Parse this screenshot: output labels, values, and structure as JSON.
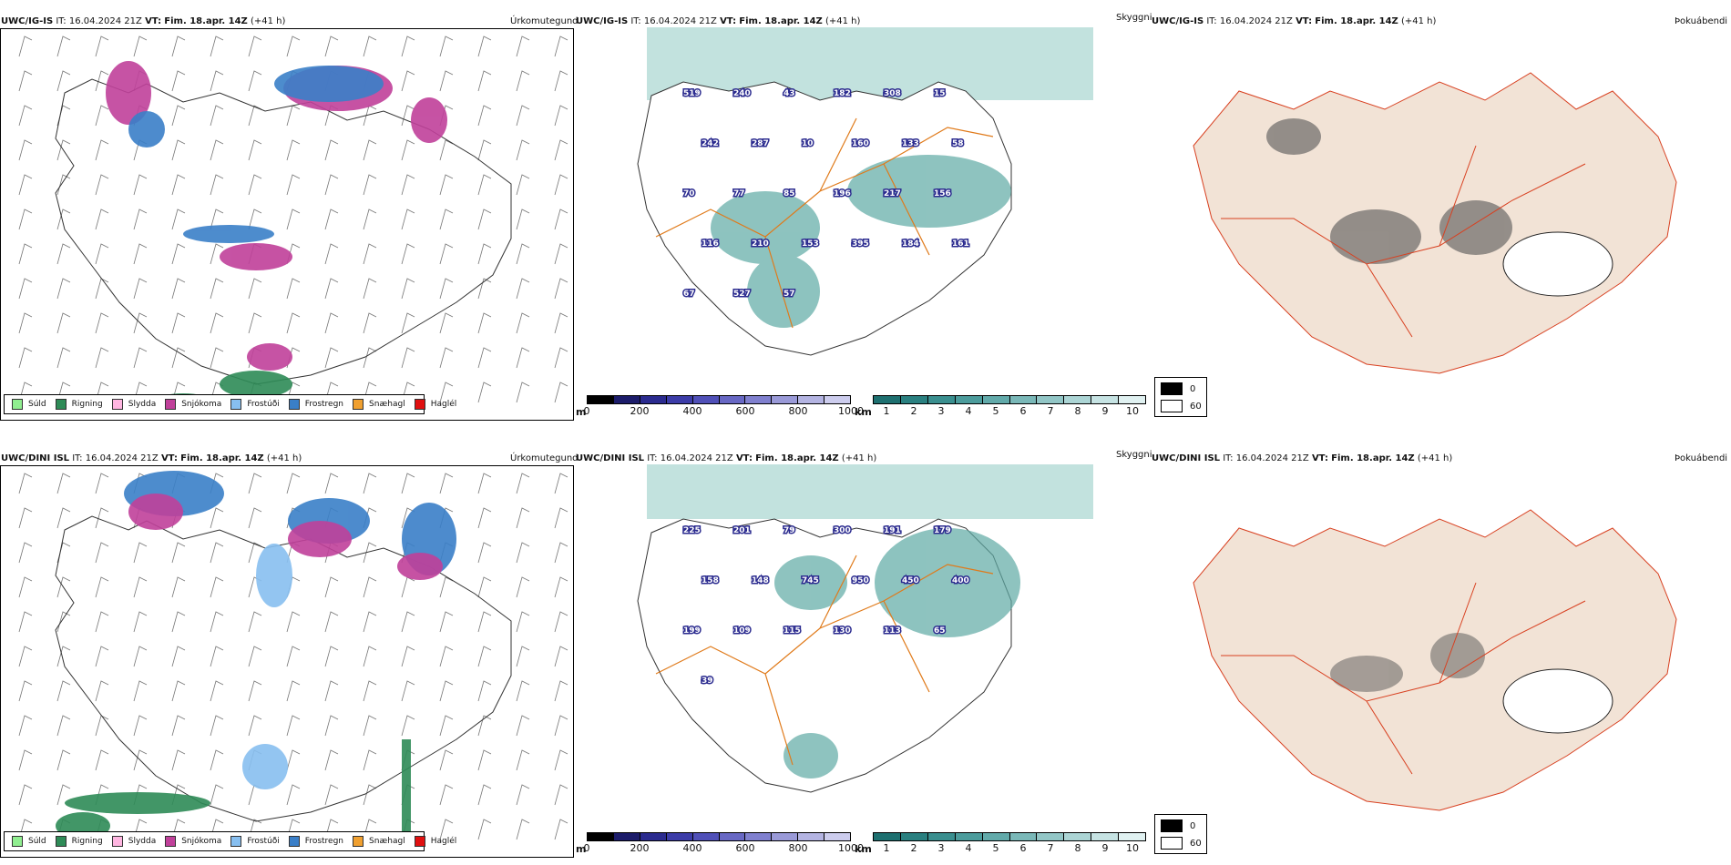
{
  "rows": [
    {
      "model": "UWC/IG-IS",
      "it_label": "IT:",
      "it_value": "16.04.2024 21Z",
      "vt_label": "VT:",
      "vt_value": "Fim. 18.apr. 14Z",
      "lead": "(+41 h)",
      "precip_title": "Úrkomutegund",
      "visibility_title": "Skyggni",
      "fog_title": "Þokuábendi",
      "labels": [
        "519",
        "240",
        "43",
        "182",
        "308",
        "15",
        "242",
        "287",
        "10",
        "160",
        "133",
        "58",
        "70",
        "77",
        "85",
        "196",
        "217",
        "156",
        "116",
        "210",
        "153",
        "395",
        "184",
        "161",
        "67",
        "527",
        "57"
      ]
    },
    {
      "model": "UWC/DINI ISL",
      "it_label": "IT:",
      "it_value": "16.04.2024 21Z",
      "vt_label": "VT:",
      "vt_value": "Fim. 18.apr. 14Z",
      "lead": "(+41 h)",
      "precip_title": "Úrkomutegund",
      "visibility_title": "Skyggni",
      "fog_title": "Þokuábendi",
      "labels": [
        "225",
        "201",
        "79",
        "300",
        "191",
        "179",
        "158",
        "148",
        "745",
        "950",
        "450",
        "400",
        "199",
        "109",
        "115",
        "130",
        "113",
        "65",
        "39"
      ]
    }
  ],
  "precip_legend": [
    {
      "label": "Súld",
      "color": "#90ee90"
    },
    {
      "label": "Rigning",
      "color": "#2e8b57"
    },
    {
      "label": "Slydda",
      "color": "#ffb6e1"
    },
    {
      "label": "Snjókoma",
      "color": "#c0409a"
    },
    {
      "label": "Frostúði",
      "color": "#87bff0"
    },
    {
      "label": "Frostregn",
      "color": "#3a7fc8"
    },
    {
      "label": "Snæhagl",
      "color": "#f0a030"
    },
    {
      "label": "Haglél",
      "color": "#e01010"
    }
  ],
  "cloudbase_bar": {
    "unit": "m",
    "ticks": [
      "0",
      "200",
      "400",
      "600",
      "800",
      "1000"
    ],
    "colors": [
      "#000000",
      "#1c1c6a",
      "#2b2b8f",
      "#3c3ca8",
      "#5050b8",
      "#6868c4",
      "#8080cf",
      "#9a9ad8",
      "#b4b4e2",
      "#cdcdee"
    ]
  },
  "visibility_bar": {
    "unit": "km",
    "ticks": [
      "1",
      "2",
      "3",
      "4",
      "5",
      "6",
      "7",
      "8",
      "9",
      "10"
    ],
    "colors": [
      "#1e7070",
      "#2a8080",
      "#3a8f8f",
      "#4c9c9c",
      "#62aaaa",
      "#7ab8b8",
      "#92c6c6",
      "#acd5d5",
      "#c6e3e3",
      "#e0f1f1"
    ]
  },
  "fog_legend": [
    {
      "label": "0",
      "color": "#000000"
    },
    {
      "label": "60",
      "color": "#ffffff"
    }
  ]
}
